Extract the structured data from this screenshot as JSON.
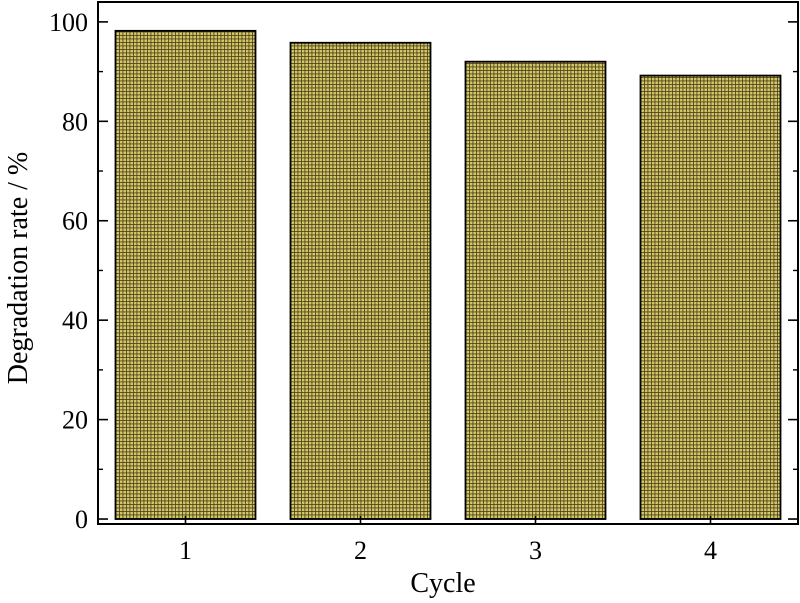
{
  "chart_data": {
    "type": "bar",
    "title": "",
    "xlabel": "Cycle",
    "ylabel": "Degradation rate / %",
    "categories": [
      "1",
      "2",
      "3",
      "4"
    ],
    "values": [
      98.2,
      95.8,
      92.0,
      89.2
    ],
    "ylim": [
      -1,
      104
    ],
    "yticks": [
      0,
      20,
      40,
      60,
      80,
      100
    ],
    "yticks_minor": [
      10,
      30,
      50,
      70,
      90
    ],
    "grid": false,
    "legend": "none",
    "bar_fill": "#c9cc66",
    "bar_hatch": "#5a3a1a",
    "bar_edge": "#000000"
  }
}
